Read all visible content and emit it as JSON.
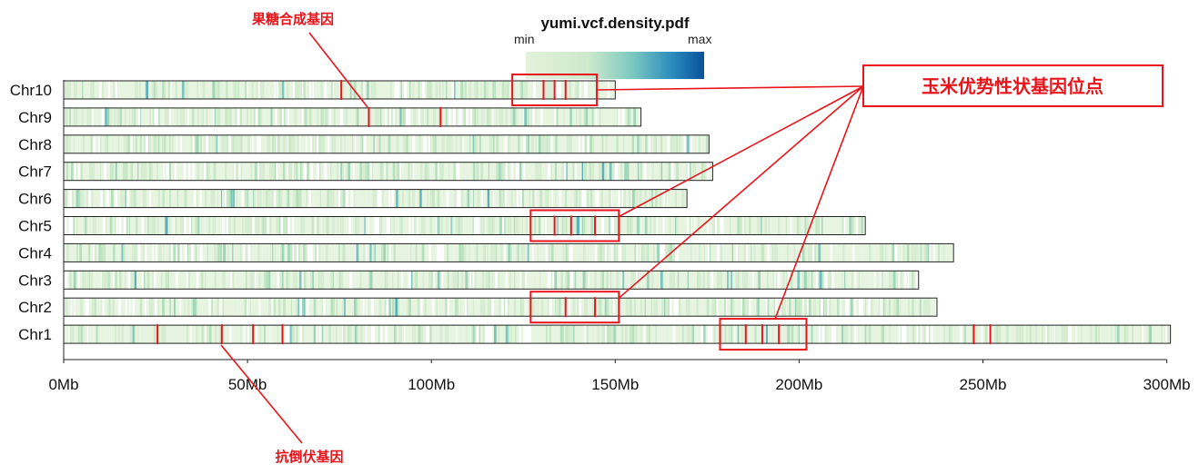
{
  "chart_data": {
    "type": "heatmap",
    "title": "yumi.vcf.density.pdf",
    "legend": {
      "min_label": "min",
      "max_label": "max",
      "colors": [
        "#e3f2dc",
        "#cde9cc",
        "#7cc8c0",
        "#2b8cbe",
        "#08519c"
      ]
    },
    "x_axis": {
      "unit": "Mb",
      "range": [
        0,
        300
      ],
      "ticks": [
        "0Mb",
        "50Mb",
        "100Mb",
        "150Mb",
        "200Mb",
        "250Mb",
        "300Mb"
      ]
    },
    "chromosomes": [
      {
        "name": "Chr10",
        "length": 150,
        "markers": [
          75.5,
          130.5,
          133.5,
          136.5
        ]
      },
      {
        "name": "Chr9",
        "length": 157,
        "markers": [
          83,
          102.5
        ]
      },
      {
        "name": "Chr8",
        "length": 175.5,
        "markers": []
      },
      {
        "name": "Chr7",
        "length": 176.5,
        "markers": []
      },
      {
        "name": "Chr6",
        "length": 169.5,
        "markers": []
      },
      {
        "name": "Chr5",
        "length": 218,
        "markers": [
          133.5,
          138,
          144.5
        ]
      },
      {
        "name": "Chr4",
        "length": 242,
        "markers": []
      },
      {
        "name": "Chr3",
        "length": 232.5,
        "markers": []
      },
      {
        "name": "Chr2",
        "length": 237.5,
        "markers": [
          136.5,
          144.5
        ]
      },
      {
        "name": "Chr1",
        "length": 301,
        "markers": [
          25.5,
          43,
          51.5,
          59.5,
          185.5,
          190,
          194.5,
          247.5,
          252
        ]
      }
    ],
    "highlight_boxes": [
      {
        "chrom": "Chr10",
        "start": 122,
        "end": 145
      },
      {
        "chrom": "Chr5",
        "start": 127,
        "end": 151
      },
      {
        "chrom": "Chr2",
        "start": 127,
        "end": 151
      },
      {
        "chrom": "Chr1",
        "start": 178.5,
        "end": 202
      }
    ],
    "colors": {
      "annotation": "#e8141b",
      "frame": "#222222"
    }
  },
  "annotations": {
    "sugar": "果糖合成基因",
    "lodging": "抗倒伏基因",
    "heterosis": "玉米优势性状基因位点"
  }
}
